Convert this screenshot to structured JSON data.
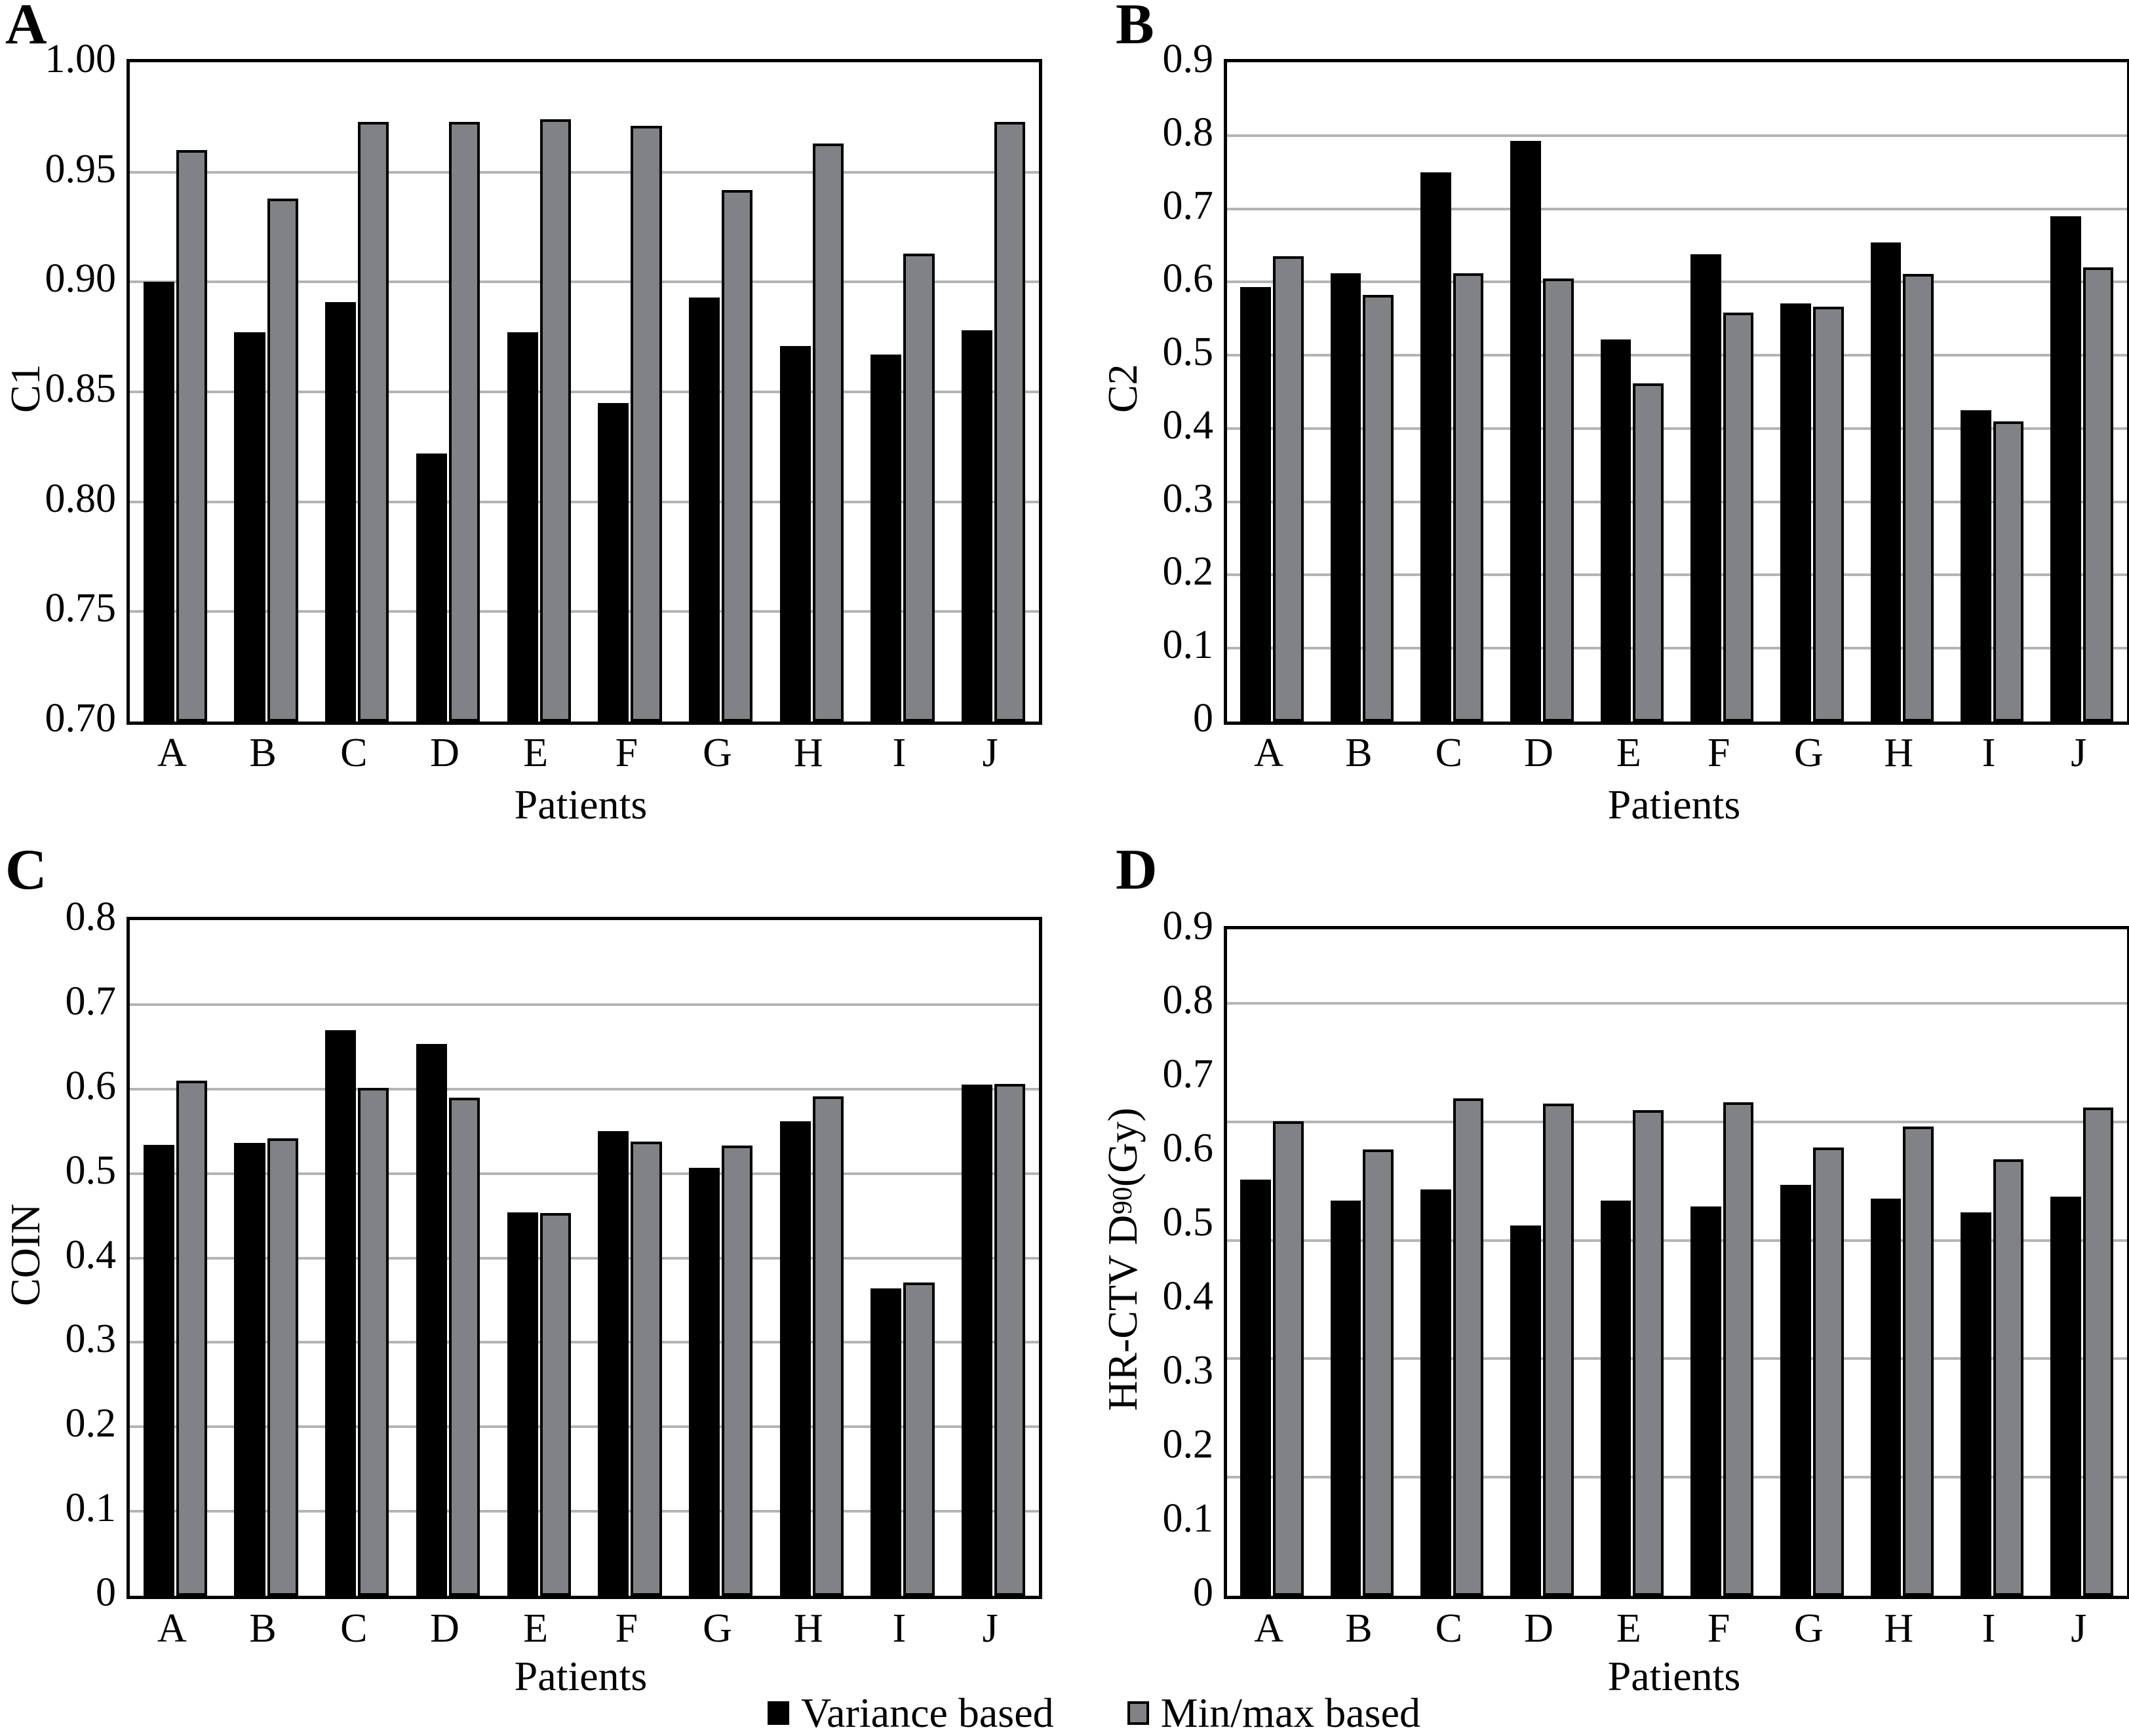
{
  "figure": {
    "legend": [
      {
        "label": "Variance based",
        "color": "#000000"
      },
      {
        "label": "Min/max based",
        "color": "#808285"
      }
    ],
    "xlabel": "Patients",
    "colors": {
      "bar_outline": "#000000",
      "gridline": "#b4b4b4"
    }
  },
  "chart_data": [
    {
      "panel": "A",
      "type": "bar",
      "title": "",
      "ylabel": "C1",
      "ylabel_parts": {
        "pre": "C1",
        "sub": "",
        "post": ""
      },
      "xlabel": "Patients",
      "ymin": 0.7,
      "ymax": 1.0,
      "yticks": [
        {
          "v": 1.0,
          "label": "1.00"
        },
        {
          "v": 0.95,
          "label": "0.95"
        },
        {
          "v": 0.9,
          "label": "0.90"
        },
        {
          "v": 0.85,
          "label": "0.85"
        },
        {
          "v": 0.8,
          "label": "0.80"
        },
        {
          "v": 0.75,
          "label": "0.75"
        },
        {
          "v": 0.7,
          "label": "0.70"
        }
      ],
      "gridlines": [
        0.95,
        0.9,
        0.85,
        0.8,
        0.75
      ],
      "grid": true,
      "legend_position": "bottom",
      "categories": [
        "A",
        "B",
        "C",
        "D",
        "E",
        "F",
        "G",
        "H",
        "I",
        "J"
      ],
      "series": [
        {
          "name": "Variance based",
          "color": "#000000",
          "values": [
            0.9,
            0.877,
            0.891,
            0.822,
            0.877,
            0.845,
            0.893,
            0.871,
            0.867,
            0.878
          ]
        },
        {
          "name": "Min/max based",
          "color": "#808285",
          "values": [
            0.96,
            0.938,
            0.973,
            0.973,
            0.974,
            0.971,
            0.942,
            0.963,
            0.913,
            0.973
          ]
        }
      ]
    },
    {
      "panel": "B",
      "type": "bar",
      "title": "",
      "ylabel": "C2",
      "ylabel_parts": {
        "pre": "C2",
        "sub": "",
        "post": ""
      },
      "xlabel": "Patients",
      "ymin": 0,
      "ymax": 0.9,
      "yticks": [
        {
          "v": 0.9,
          "label": "0.9"
        },
        {
          "v": 0.8,
          "label": "0.8"
        },
        {
          "v": 0.7,
          "label": "0.7"
        },
        {
          "v": 0.6,
          "label": "0.6"
        },
        {
          "v": 0.5,
          "label": "0.5"
        },
        {
          "v": 0.4,
          "label": "0.4"
        },
        {
          "v": 0.3,
          "label": "0.3"
        },
        {
          "v": 0.2,
          "label": "0.2"
        },
        {
          "v": 0.1,
          "label": "0.1"
        },
        {
          "v": 0,
          "label": "0"
        }
      ],
      "gridlines": [
        0.8,
        0.7,
        0.6,
        0.5,
        0.4,
        0.3,
        0.2,
        0.1
      ],
      "grid": true,
      "legend_position": "bottom",
      "categories": [
        "A",
        "B",
        "C",
        "D",
        "E",
        "F",
        "G",
        "H",
        "I",
        "J"
      ],
      "series": [
        {
          "name": "Variance based",
          "color": "#000000",
          "values": [
            0.593,
            0.612,
            0.75,
            0.793,
            0.522,
            0.638,
            0.571,
            0.654,
            0.425,
            0.69
          ]
        },
        {
          "name": "Min/max based",
          "color": "#808285",
          "values": [
            0.635,
            0.582,
            0.612,
            0.605,
            0.462,
            0.558,
            0.566,
            0.611,
            0.41,
            0.62
          ]
        }
      ]
    },
    {
      "panel": "C",
      "type": "bar",
      "title": "",
      "ylabel": "COIN",
      "ylabel_parts": {
        "pre": "COIN",
        "sub": "",
        "post": ""
      },
      "xlabel": "Patients",
      "ymin": 0,
      "ymax": 0.8,
      "yticks": [
        {
          "v": 0.8,
          "label": "0.8"
        },
        {
          "v": 0.7,
          "label": "0.7"
        },
        {
          "v": 0.6,
          "label": "0.6"
        },
        {
          "v": 0.5,
          "label": "0.5"
        },
        {
          "v": 0.4,
          "label": "0.4"
        },
        {
          "v": 0.3,
          "label": "0.3"
        },
        {
          "v": 0.2,
          "label": "0.2"
        },
        {
          "v": 0.1,
          "label": "0.1"
        },
        {
          "v": 0,
          "label": "0"
        }
      ],
      "gridlines": [
        0.7,
        0.6,
        0.5,
        0.4,
        0.3,
        0.2,
        0.1
      ],
      "grid": true,
      "legend_position": "bottom",
      "categories": [
        "A",
        "B",
        "C",
        "D",
        "E",
        "F",
        "G",
        "H",
        "I",
        "J"
      ],
      "series": [
        {
          "name": "Variance based",
          "color": "#000000",
          "values": [
            0.534,
            0.536,
            0.67,
            0.653,
            0.454,
            0.55,
            0.507,
            0.562,
            0.364,
            0.605
          ]
        },
        {
          "name": "Min/max based",
          "color": "#808285",
          "values": [
            0.61,
            0.542,
            0.601,
            0.59,
            0.453,
            0.538,
            0.533,
            0.591,
            0.371,
            0.606
          ]
        }
      ]
    },
    {
      "panel": "D",
      "type": "bar",
      "title": "",
      "ylabel": "HR-CTV D90 (Gy)",
      "ylabel_parts": {
        "pre": "HR-CTV D",
        "sub": "90",
        "post": " (Gy)"
      },
      "xlabel": "Patients",
      "ymin": 0,
      "ymax": 0.9,
      "yticks": [
        {
          "v": 0.9,
          "label": "0.9"
        },
        {
          "v": 0.8,
          "label": "0.8"
        },
        {
          "v": 0.7,
          "label": "0.7"
        },
        {
          "v": 0.6,
          "label": "0.6"
        },
        {
          "v": 0.5,
          "label": "0.5"
        },
        {
          "v": 0.4,
          "label": "0.4"
        },
        {
          "v": 0.3,
          "label": "0.3"
        },
        {
          "v": 0.2,
          "label": "0.2"
        },
        {
          "v": 0.1,
          "label": "0.1"
        },
        {
          "v": 0,
          "label": "0"
        }
      ],
      "gridlines": [
        0.8,
        0.64,
        0.48,
        0.32,
        0.16
      ],
      "grid": true,
      "legend_position": "bottom",
      "categories": [
        "A",
        "B",
        "C",
        "D",
        "E",
        "F",
        "G",
        "H",
        "I",
        "J"
      ],
      "series": [
        {
          "name": "Variance based",
          "color": "#000000",
          "values": [
            0.562,
            0.534,
            0.549,
            0.5,
            0.534,
            0.526,
            0.555,
            0.536,
            0.518,
            0.539
          ]
        },
        {
          "name": "Min/max based",
          "color": "#808285",
          "values": [
            0.641,
            0.603,
            0.672,
            0.665,
            0.656,
            0.666,
            0.605,
            0.634,
            0.589,
            0.659
          ]
        }
      ]
    }
  ]
}
